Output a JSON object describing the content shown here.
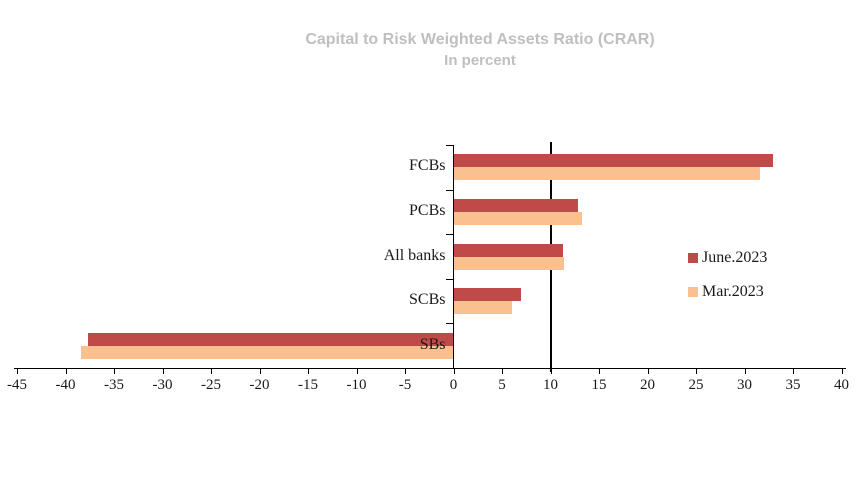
{
  "title": {
    "line1": "Capital to Risk Weighted Assets Ratio (CRAR)",
    "line2": "In percent"
  },
  "colors": {
    "title_gray": "#bfbfbf",
    "axis_black": "#000000",
    "june": "#be4b48",
    "mar": "#fac090"
  },
  "chart_data": {
    "type": "bar",
    "orientation": "horizontal",
    "title": "Capital to Risk Weighted Assets Ratio (CRAR)",
    "subtitle": "In percent",
    "categories": [
      "FCBs",
      "PCBs",
      "All banks",
      "SCBs",
      "SBs"
    ],
    "series": [
      {
        "name": "June.2023",
        "color": "#be4b48",
        "values": [
          32.9,
          12.8,
          11.3,
          7.0,
          -37.7
        ]
      },
      {
        "name": "Mar.2023",
        "color": "#fac090",
        "values": [
          31.6,
          13.2,
          11.4,
          6.0,
          -38.4
        ]
      }
    ],
    "xlim": [
      -45,
      40
    ],
    "x_ticks": [
      -45,
      -40,
      -35,
      -30,
      -25,
      -20,
      -15,
      -10,
      -5,
      0,
      5,
      10,
      15,
      20,
      25,
      30,
      35,
      40
    ],
    "reference_line_x": 10,
    "legend_position": "middle-right",
    "grid": false
  }
}
